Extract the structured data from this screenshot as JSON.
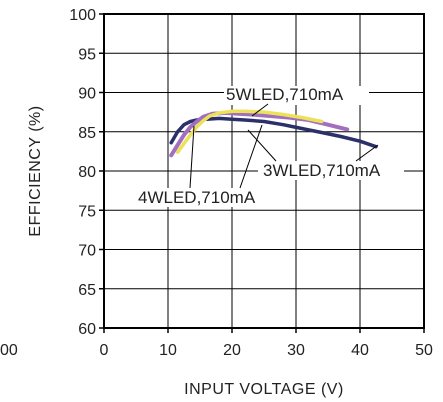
{
  "chart_data": {
    "type": "line",
    "title": "",
    "xlabel": "INPUT VOLTAGE (V)",
    "ylabel": "EFFICIENCY (%)",
    "xlim": [
      0,
      50
    ],
    "ylim": [
      60,
      100
    ],
    "x_ticks": [
      "0",
      "10",
      "20",
      "30",
      "40",
      "50"
    ],
    "y_ticks": [
      "60",
      "65",
      "70",
      "75",
      "80",
      "85",
      "90",
      "95",
      "100"
    ],
    "corner_fragment": "00",
    "grid": true,
    "colors": {
      "navy": "#2b2f6a",
      "violet": "#a26fc0",
      "yellow": "#ece25a",
      "grid": "#000000",
      "axis": "#000000"
    },
    "series": [
      {
        "name": "3WLED,710mA",
        "color": "#2b2f6a",
        "x": [
          10.5,
          11.5,
          12.5,
          13.5,
          14.5,
          16,
          18,
          20,
          22,
          25,
          28,
          31,
          34,
          37,
          40,
          42.5
        ],
        "y": [
          83.6,
          85.0,
          85.9,
          86.3,
          86.5,
          86.6,
          86.7,
          86.6,
          86.5,
          86.3,
          85.9,
          85.4,
          84.9,
          84.4,
          83.8,
          83.1
        ]
      },
      {
        "name": "5WLED,710mA",
        "color": "#a26fc0",
        "x": [
          10.5,
          11.5,
          12.5,
          13.5,
          14.5,
          15.5,
          17,
          19,
          21,
          23,
          26,
          29,
          32,
          35,
          38
        ],
        "y": [
          82.0,
          83.3,
          84.6,
          85.6,
          86.3,
          86.9,
          87.3,
          87.4,
          87.3,
          87.2,
          87.0,
          86.8,
          86.5,
          85.9,
          85.3
        ]
      },
      {
        "name": "4WLED,710mA",
        "color": "#ece25a",
        "x": [
          11.5,
          12.5,
          13.5,
          14.5,
          15.5,
          16.5,
          18,
          20,
          22,
          25,
          28,
          31,
          34
        ],
        "y": [
          82.4,
          83.5,
          84.6,
          85.6,
          86.4,
          87.0,
          87.4,
          87.6,
          87.6,
          87.5,
          87.2,
          86.8,
          86.3
        ]
      }
    ],
    "annotations": [
      {
        "text": "5WLED,710mA",
        "series": "5WLED,710mA"
      },
      {
        "text": "3WLED,710mA",
        "series": "3WLED,710mA"
      },
      {
        "text": "4WLED,710mA",
        "series": "4WLED,710mA"
      }
    ]
  }
}
